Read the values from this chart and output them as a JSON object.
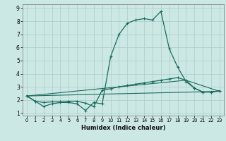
{
  "xlabel": "Humidex (Indice chaleur)",
  "bg_color": "#cce8e4",
  "grid_color": "#aaccca",
  "line_color": "#1a6b5e",
  "xlim": [
    -0.5,
    23.5
  ],
  "ylim": [
    0.8,
    9.3
  ],
  "xticks": [
    0,
    1,
    2,
    3,
    4,
    5,
    6,
    7,
    8,
    9,
    10,
    11,
    12,
    13,
    14,
    15,
    16,
    17,
    18,
    19,
    20,
    21,
    22,
    23
  ],
  "yticks": [
    1,
    2,
    3,
    4,
    5,
    6,
    7,
    8,
    9
  ],
  "line1_x": [
    0,
    1,
    2,
    3,
    4,
    5,
    6,
    7,
    8,
    9,
    10,
    11,
    12,
    13,
    14,
    15,
    16,
    17,
    18,
    19,
    20,
    21,
    22,
    23
  ],
  "line1_y": [
    2.3,
    1.9,
    1.5,
    1.7,
    1.8,
    1.8,
    1.7,
    1.2,
    1.8,
    1.7,
    5.3,
    7.0,
    7.85,
    8.1,
    8.2,
    8.1,
    8.75,
    5.9,
    4.5,
    3.4,
    2.9,
    2.6,
    2.6,
    2.7
  ],
  "line2_x": [
    0,
    1,
    2,
    3,
    4,
    5,
    6,
    7,
    8,
    9,
    10,
    11,
    12,
    13,
    14,
    15,
    16,
    17,
    18,
    19,
    20,
    21,
    22,
    23
  ],
  "line2_y": [
    2.3,
    1.9,
    1.8,
    1.85,
    1.85,
    1.9,
    1.9,
    1.75,
    1.5,
    2.75,
    2.85,
    3.0,
    3.1,
    3.2,
    3.3,
    3.4,
    3.5,
    3.6,
    3.7,
    3.5,
    2.9,
    2.6,
    2.6,
    2.7
  ],
  "line3_x": [
    0,
    23
  ],
  "line3_y": [
    2.3,
    2.65
  ],
  "line4_x": [
    0,
    19,
    23
  ],
  "line4_y": [
    2.3,
    3.5,
    2.65
  ],
  "xlabel_fontsize": 6.0,
  "xtick_fontsize": 4.8,
  "ytick_fontsize": 5.5
}
